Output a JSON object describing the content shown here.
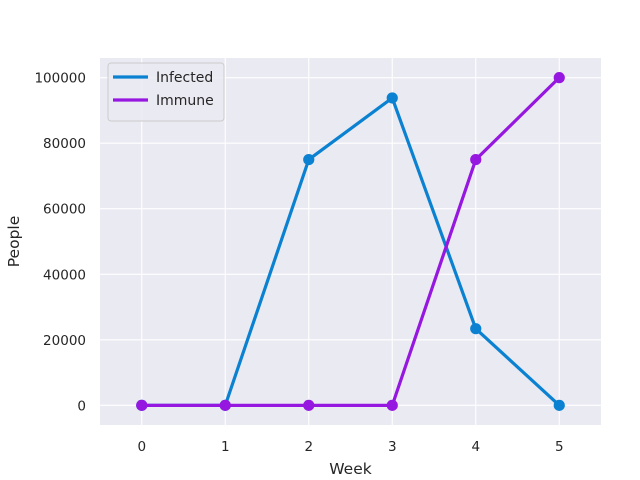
{
  "chart_data": {
    "type": "line",
    "title": "",
    "xlabel": "Week",
    "ylabel": "People",
    "x": [
      0,
      1,
      2,
      3,
      4,
      5
    ],
    "xlim": [
      -0.5,
      5.5
    ],
    "ylim": [
      -6000,
      106000
    ],
    "yticks": [
      0,
      20000,
      40000,
      60000,
      80000,
      100000
    ],
    "grid": true,
    "legend_position": "top-left",
    "background": "#eaeaf2",
    "series": [
      {
        "name": "Infected",
        "color": "#0b82d1",
        "values": [
          0,
          0,
          75000,
          93800,
          23400,
          0
        ]
      },
      {
        "name": "Immune",
        "color": "#9617e0",
        "values": [
          0,
          0,
          0,
          0,
          75000,
          100000
        ]
      }
    ]
  }
}
